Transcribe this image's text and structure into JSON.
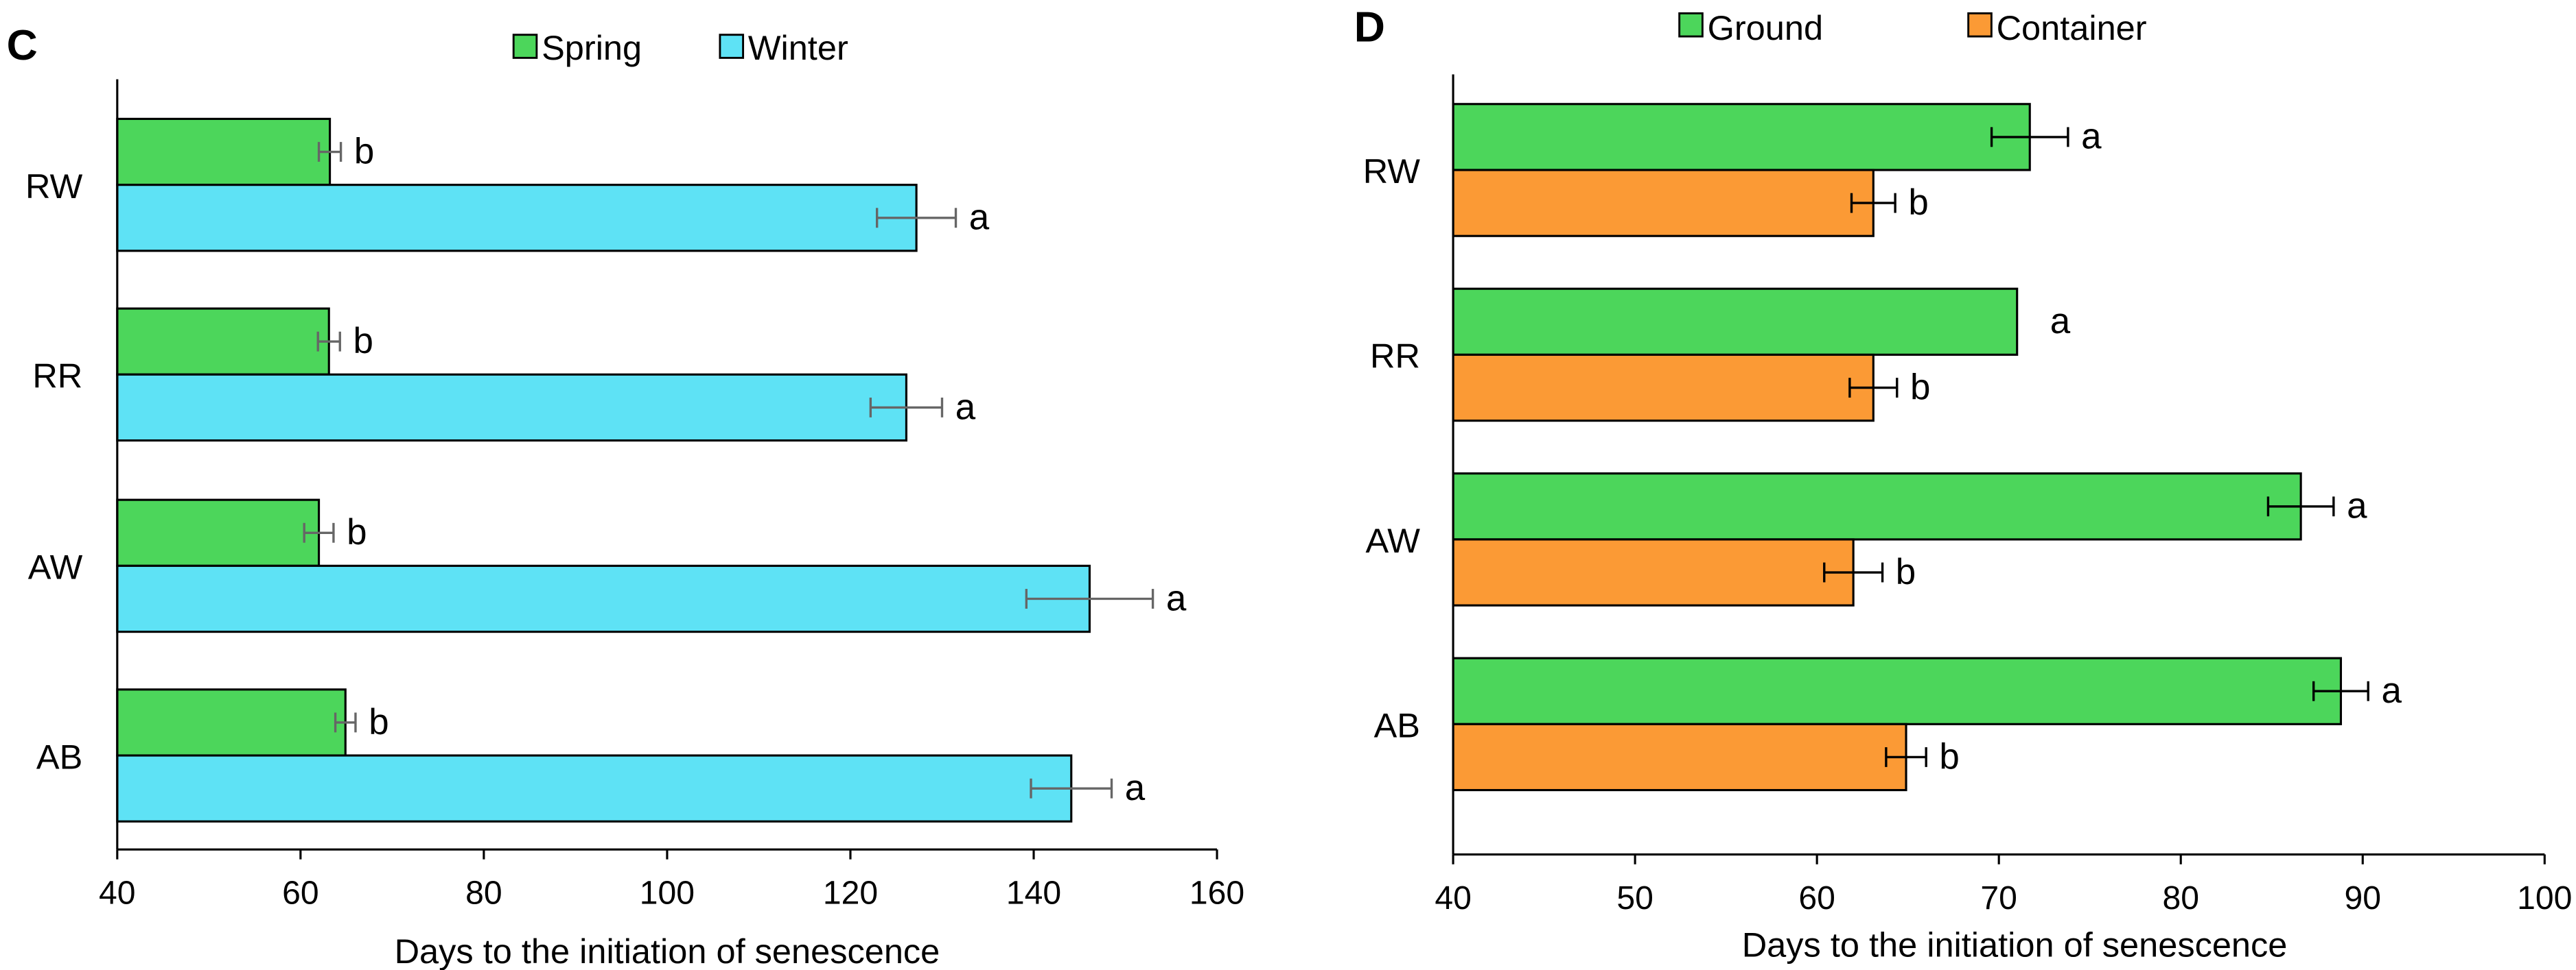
{
  "chart_data": [
    {
      "panel_label": "C",
      "type": "bar",
      "orientation": "horizontal",
      "categories": [
        "RW",
        "RR",
        "AW",
        "AB"
      ],
      "series": [
        {
          "name": "Spring",
          "color": "#4cd65b",
          "values": [
            63.2,
            63.1,
            62.0,
            64.9
          ],
          "errors": [
            1.2,
            1.2,
            1.6,
            1.1
          ],
          "letters": [
            "b",
            "b",
            "b",
            "b"
          ]
        },
        {
          "name": "Winter",
          "color": "#5ee2f5",
          "values": [
            127.2,
            126.1,
            146.1,
            144.1
          ],
          "errors": [
            4.3,
            3.9,
            6.9,
            4.4
          ],
          "letters": [
            "a",
            "a",
            "a",
            "a"
          ]
        }
      ],
      "xlabel": "Days to the initiation of senescence",
      "xlim": [
        40,
        160
      ],
      "xticks": [
        40,
        60,
        80,
        100,
        120,
        140,
        160
      ],
      "error_bar_color": "#666666",
      "legend": "top-center",
      "grid": false
    },
    {
      "panel_label": "D",
      "type": "bar",
      "orientation": "horizontal",
      "categories": [
        "RW",
        "RR",
        "AW",
        "AB"
      ],
      "series": [
        {
          "name": "Ground",
          "color": "#4cd65b",
          "values": [
            71.7,
            71.0,
            86.6,
            88.8
          ],
          "errors": [
            2.1,
            0,
            1.8,
            1.5
          ],
          "letters": [
            "a",
            "a",
            "a",
            "a"
          ]
        },
        {
          "name": "Container",
          "color": "#fb9a35",
          "values": [
            63.1,
            63.1,
            62.0,
            64.9
          ],
          "errors": [
            1.2,
            1.3,
            1.6,
            1.1
          ],
          "letters": [
            "b",
            "b",
            "b",
            "b"
          ]
        }
      ],
      "xlabel": "Days to the initiation of senescence",
      "xlim": [
        40,
        100
      ],
      "xticks": [
        40,
        50,
        60,
        70,
        80,
        90,
        100
      ],
      "error_bar_color": "#000000",
      "legend": "top-center",
      "grid": false
    }
  ]
}
